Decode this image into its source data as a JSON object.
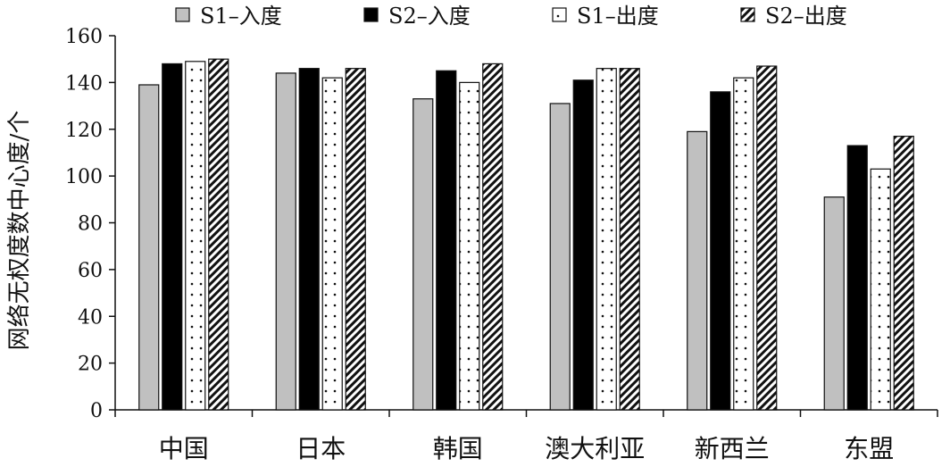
{
  "chart_data": {
    "type": "bar",
    "categories": [
      "中国",
      "日本",
      "韩国",
      "澳大利亚",
      "新西兰",
      "东盟"
    ],
    "series": [
      {
        "name": "S1–入度",
        "values": [
          139,
          144,
          133,
          131,
          119,
          91
        ],
        "fill": "gray"
      },
      {
        "name": "S2–入度",
        "values": [
          148,
          146,
          145,
          141,
          136,
          113
        ],
        "fill": "black"
      },
      {
        "name": "S1–出度",
        "values": [
          149,
          142,
          140,
          146,
          142,
          103
        ],
        "fill": "dots"
      },
      {
        "name": "S2–出度",
        "values": [
          150,
          146,
          148,
          146,
          147,
          117
        ],
        "fill": "stripes"
      }
    ],
    "title": "",
    "xlabel": "",
    "ylabel": "网络无权度数中心度/个",
    "ylim": [
      0,
      160
    ],
    "yticks": [
      0,
      20,
      40,
      60,
      80,
      100,
      120,
      140,
      160
    ],
    "legend_position": "top",
    "grid": false
  },
  "colors": {
    "gray": "#c0c0c0",
    "black": "#000000",
    "outline": "#111111"
  }
}
